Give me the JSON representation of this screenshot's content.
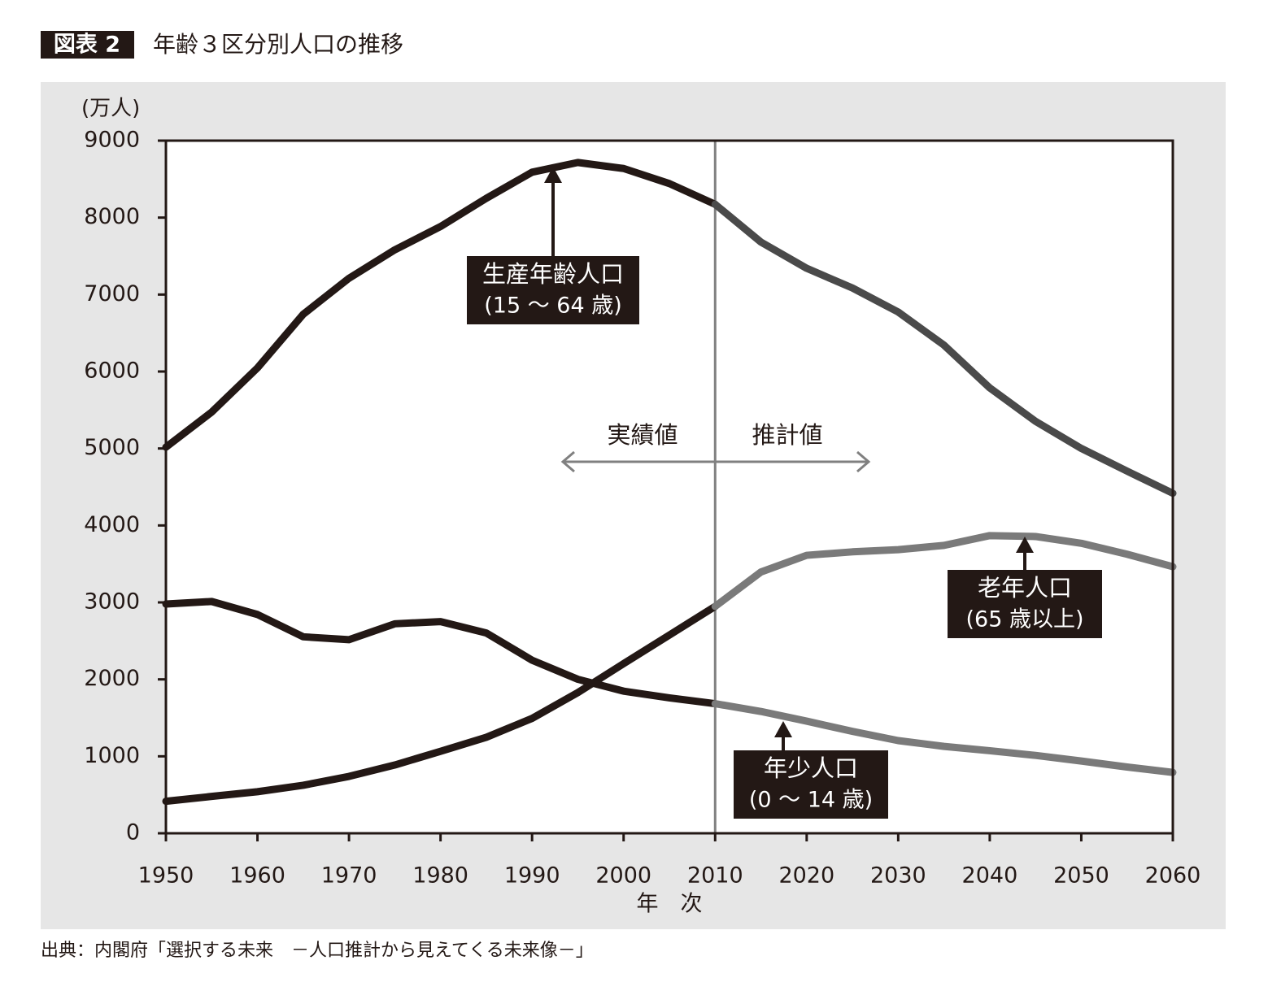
{
  "figure_label": "図表 2",
  "source": "出典：内閣府「選択する未来　－人口推計から見えてくる未来像－」",
  "chart_data": {
    "type": "line",
    "title": "年齢３区分別人口の推移",
    "y_unit": "(万人)",
    "x_label": "年　次",
    "actual_label": "実績値",
    "projected_label": "推計値",
    "split_x": 2010,
    "x": [
      1950,
      1955,
      1960,
      1965,
      1970,
      1975,
      1980,
      1985,
      1990,
      1995,
      2000,
      2005,
      2010,
      2015,
      2020,
      2025,
      2030,
      2035,
      2040,
      2045,
      2050,
      2055,
      2060
    ],
    "series": [
      {
        "name": "生産年齢人口",
        "sub": "(15 ～ 64 歳)",
        "color": "#231815",
        "projected_color": "#4a4a4a",
        "values": [
          5017,
          5473,
          6047,
          6744,
          7212,
          7581,
          7884,
          8251,
          8590,
          8716,
          8638,
          8442,
          8173,
          7682,
          7341,
          7085,
          6773,
          6343,
          5787,
          5353,
          5001,
          4706,
          4418
        ]
      },
      {
        "name": "老年人口",
        "sub": "(65 歳以上)",
        "color": "#231815",
        "projected_color": "#7a7a7a",
        "values": [
          416,
          479,
          540,
          624,
          739,
          887,
          1065,
          1247,
          1493,
          1828,
          2204,
          2576,
          2948,
          3395,
          3612,
          3657,
          3685,
          3741,
          3868,
          3856,
          3768,
          3626,
          3464
        ]
      },
      {
        "name": "年少人口",
        "sub": "(0 ～ 14 歳)",
        "color": "#231815",
        "projected_color": "#7a7a7a",
        "values": [
          2979,
          3012,
          2843,
          2553,
          2515,
          2722,
          2751,
          2603,
          2249,
          2001,
          1847,
          1759,
          1684,
          1583,
          1457,
          1324,
          1204,
          1129,
          1073,
          1012,
          939,
          861,
          791
        ]
      }
    ],
    "xlim": [
      1950,
      2060
    ],
    "xticks": [
      1950,
      1960,
      1970,
      1980,
      1990,
      2000,
      2010,
      2020,
      2030,
      2040,
      2050,
      2060
    ],
    "ylim": [
      0,
      9000
    ],
    "yticks": [
      0,
      1000,
      2000,
      3000,
      4000,
      5000,
      6000,
      7000,
      8000,
      9000
    ]
  }
}
